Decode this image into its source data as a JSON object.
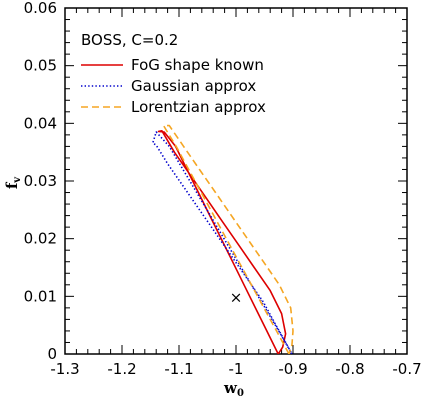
{
  "chart_data": {
    "type": "line",
    "xlabel": "w",
    "xlabel_sub": "0",
    "ylabel": "f",
    "ylabel_sub": "v",
    "xlim": [
      -1.3,
      -0.7
    ],
    "ylim": [
      0,
      0.06
    ],
    "x_ticks": [
      -1.3,
      -1.2,
      -1.1,
      -1.0,
      -0.9,
      -0.8,
      -0.7
    ],
    "x_tick_labels": [
      "-1.3",
      "-1.2",
      "-1.1",
      "-1",
      "-0.9",
      "-0.8",
      "-0.7"
    ],
    "y_ticks": [
      0,
      0.01,
      0.02,
      0.03,
      0.04,
      0.05,
      0.06
    ],
    "y_tick_labels": [
      "0",
      "0.01",
      "0.02",
      "0.03",
      "0.04",
      "0.05",
      "0.06"
    ],
    "legend_title": "BOSS, C=0.2",
    "legend_position": "top-left",
    "fiducial": {
      "x": -1.0,
      "y": 0.01,
      "marker": "×"
    },
    "series": [
      {
        "name": "FoG shape known",
        "color": "#dd0000",
        "dash": "solid",
        "x": [
          -0.926,
          -0.946,
          -0.966,
          -0.986,
          -1.006,
          -1.026,
          -1.046,
          -1.066,
          -1.086,
          -1.106,
          -1.126,
          -1.136,
          -1.13,
          -1.108,
          -1.08,
          -1.052,
          -1.024,
          -0.996,
          -0.968,
          -0.94,
          -0.92,
          -0.913,
          -0.918,
          -0.926
        ],
        "y": [
          0.0,
          0.004,
          0.008,
          0.012,
          0.016,
          0.02,
          0.024,
          0.028,
          0.032,
          0.036,
          0.0385,
          0.0386,
          0.0387,
          0.035,
          0.031,
          0.027,
          0.023,
          0.019,
          0.015,
          0.011,
          0.007,
          0.0035,
          0.0012,
          0.0
        ]
      },
      {
        "name": "Gaussian approx",
        "color": "#0000cc",
        "dash": "dotted",
        "x": [
          -0.902,
          -0.925,
          -0.949,
          -0.973,
          -0.997,
          -1.021,
          -1.045,
          -1.069,
          -1.093,
          -1.117,
          -1.14,
          -1.146,
          -1.14,
          -1.12,
          -1.092,
          -1.064,
          -1.036,
          -1.008,
          -0.98,
          -0.952,
          -0.93,
          -0.91,
          -0.902
        ],
        "y": [
          0.0,
          0.004,
          0.008,
          0.012,
          0.016,
          0.02,
          0.024,
          0.028,
          0.032,
          0.036,
          0.0385,
          0.0366,
          0.0362,
          0.033,
          0.029,
          0.025,
          0.021,
          0.017,
          0.013,
          0.009,
          0.005,
          0.0015,
          0.0
        ]
      },
      {
        "name": "Lorentzian approx",
        "color": "#f5a623",
        "dash": "dashed",
        "x": [
          -0.907,
          -0.929,
          -0.951,
          -0.973,
          -0.995,
          -1.017,
          -1.039,
          -1.061,
          -1.083,
          -1.105,
          -1.124,
          -1.127,
          -1.117,
          -1.092,
          -1.064,
          -1.036,
          -1.008,
          -0.98,
          -0.952,
          -0.924,
          -0.904,
          -0.9,
          -0.902,
          -0.907
        ],
        "y": [
          0.0,
          0.004,
          0.008,
          0.012,
          0.016,
          0.02,
          0.024,
          0.028,
          0.032,
          0.036,
          0.0391,
          0.0396,
          0.0396,
          0.036,
          0.032,
          0.028,
          0.024,
          0.02,
          0.016,
          0.012,
          0.008,
          0.004,
          0.0015,
          0.0
        ]
      }
    ]
  }
}
